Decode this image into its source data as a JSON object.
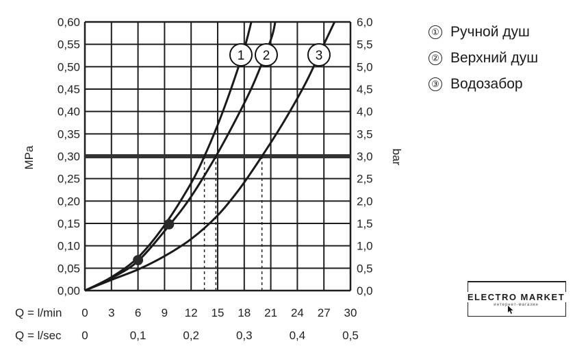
{
  "chart_data": {
    "type": "line",
    "ylabel_left": "MPa",
    "ylabel_right": "bar",
    "y_ticks_left": [
      "0,00",
      "0,05",
      "0,10",
      "0,15",
      "0,20",
      "0,25",
      "0,30",
      "0,35",
      "0,40",
      "0,45",
      "0,50",
      "0,55",
      "0,60"
    ],
    "y_ticks_right": [
      "0,0",
      "0,5",
      "1,0",
      "1,5",
      "2,0",
      "2,5",
      "3,0",
      "3,5",
      "4,0",
      "4,5",
      "5,0",
      "5,5",
      "6,0"
    ],
    "ylim": [
      0,
      0.6
    ],
    "xlim_lmin": [
      0,
      30
    ],
    "x_label_lmin": "Q = l/min",
    "x_ticks_lmin": [
      "0",
      "3",
      "6",
      "9",
      "12",
      "15",
      "18",
      "21",
      "24",
      "27",
      "30"
    ],
    "x_label_lsec": "Q = l/sec",
    "x_ticks_lsec": [
      "0",
      "0,1",
      "0,2",
      "0,3",
      "0,4",
      "0,5"
    ],
    "reference_line": {
      "y": 0.3
    },
    "grid": true,
    "series": [
      {
        "name": "1",
        "x": [
          0,
          3,
          6,
          9,
          12,
          13.5,
          15,
          16.5,
          18,
          18.8
        ],
        "y": [
          0,
          0.03,
          0.074,
          0.146,
          0.24,
          0.3,
          0.37,
          0.45,
          0.54,
          0.6
        ],
        "marker": {
          "x": 6,
          "y": 0.068
        }
      },
      {
        "name": "2",
        "x": [
          0,
          3,
          6,
          9.5,
          12,
          14.8,
          17,
          19,
          21,
          21.5
        ],
        "y": [
          0,
          0.028,
          0.066,
          0.145,
          0.21,
          0.3,
          0.38,
          0.46,
          0.56,
          0.6
        ],
        "marker": {
          "x": 9.5,
          "y": 0.148
        }
      },
      {
        "name": "3",
        "x": [
          0,
          3,
          6,
          9,
          12,
          15,
          17.5,
          20,
          22.5,
          25,
          27,
          28.2
        ],
        "y": [
          0,
          0.024,
          0.047,
          0.077,
          0.115,
          0.168,
          0.228,
          0.3,
          0.378,
          0.466,
          0.55,
          0.6
        ]
      }
    ],
    "drop_lines_x": [
      13.5,
      14.8,
      20
    ]
  },
  "legend": [
    {
      "num": "①",
      "label": "Ручной душ"
    },
    {
      "num": "②",
      "label": "Верхний душ"
    },
    {
      "num": "③",
      "label": "Водозабор"
    }
  ],
  "logo": {
    "brand": "ELECTRO MARKET",
    "sub": "интернет-магазин"
  },
  "colors": {
    "grid": "#1e1e1e",
    "curve": "#1a1a1a",
    "reference": "#333333",
    "marker": "#2a2a2a"
  }
}
